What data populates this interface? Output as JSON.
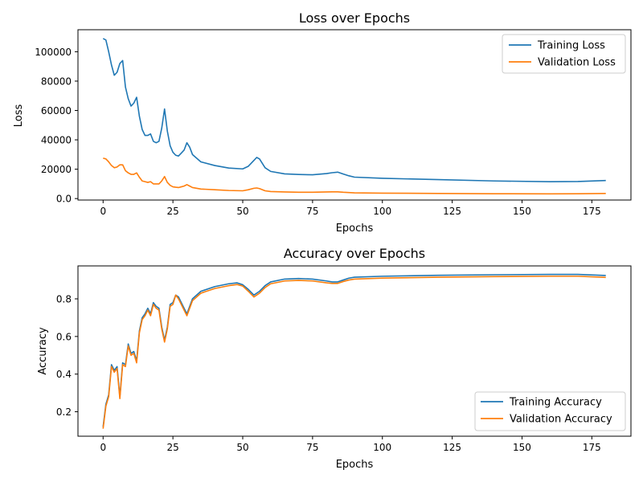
{
  "chart_data": [
    {
      "type": "line",
      "title": "Loss over Epochs",
      "xlabel": "Epochs",
      "ylabel": "Loss",
      "xlim": [
        -9,
        189
      ],
      "ylim": [
        -1000,
        115000
      ],
      "xticks": [
        0,
        25,
        50,
        75,
        100,
        125,
        150,
        175
      ],
      "yticks": [
        0,
        20000,
        40000,
        60000,
        80000,
        100000
      ],
      "grid": false,
      "legend": "top-right",
      "colors": [
        "#1f77b4",
        "#ff7f0e"
      ],
      "x": [
        0,
        1,
        2,
        3,
        4,
        5,
        6,
        7,
        8,
        9,
        10,
        11,
        12,
        13,
        14,
        15,
        16,
        17,
        18,
        19,
        20,
        21,
        22,
        23,
        24,
        25,
        26,
        27,
        28,
        29,
        30,
        31,
        32,
        35,
        40,
        45,
        50,
        52,
        54,
        55,
        56,
        58,
        60,
        65,
        70,
        75,
        80,
        82,
        84,
        86,
        88,
        90,
        100,
        120,
        140,
        160,
        170,
        180
      ],
      "series": [
        {
          "name": "Training Loss",
          "values": [
            109000,
            108000,
            100000,
            91000,
            84000,
            86000,
            92000,
            94000,
            76000,
            68000,
            63000,
            65000,
            69000,
            56000,
            47000,
            43000,
            43000,
            44000,
            39000,
            38000,
            39000,
            48000,
            61000,
            46000,
            36000,
            31500,
            29500,
            29000,
            31000,
            33000,
            38000,
            35000,
            30000,
            25000,
            22500,
            20800,
            20200,
            22000,
            26000,
            28000,
            27000,
            21000,
            18500,
            16800,
            16400,
            16200,
            17000,
            17600,
            18000,
            16700,
            15500,
            14600,
            13800,
            12900,
            12000,
            11500,
            11600,
            12300
          ]
        },
        {
          "name": "Validation Loss",
          "values": [
            27500,
            27000,
            25000,
            22500,
            21000,
            21500,
            23000,
            23000,
            19000,
            17500,
            16500,
            16500,
            17500,
            14500,
            12000,
            11500,
            11000,
            11500,
            10000,
            10000,
            10000,
            12000,
            15000,
            11000,
            9000,
            8000,
            7700,
            7500,
            8000,
            8500,
            9500,
            8500,
            7500,
            6500,
            6000,
            5500,
            5300,
            6000,
            7000,
            7200,
            6800,
            5300,
            4800,
            4500,
            4300,
            4300,
            4500,
            4600,
            4600,
            4300,
            4100,
            3900,
            3700,
            3500,
            3300,
            3200,
            3300,
            3500
          ]
        }
      ]
    },
    {
      "type": "line",
      "title": "Accuracy over Epochs",
      "xlabel": "Epochs",
      "ylabel": "Accuracy",
      "xlim": [
        -9,
        189
      ],
      "ylim": [
        0.07,
        0.975
      ],
      "xticks": [
        0,
        25,
        50,
        75,
        100,
        125,
        150,
        175
      ],
      "yticks": [
        0.2,
        0.4,
        0.6,
        0.8
      ],
      "grid": false,
      "legend": "bottom-right",
      "colors": [
        "#1f77b4",
        "#ff7f0e"
      ],
      "x": [
        0,
        1,
        2,
        3,
        4,
        5,
        6,
        7,
        8,
        9,
        10,
        11,
        12,
        13,
        14,
        15,
        16,
        17,
        18,
        19,
        20,
        21,
        22,
        23,
        24,
        25,
        26,
        27,
        28,
        29,
        30,
        31,
        32,
        35,
        40,
        45,
        48,
        50,
        52,
        54,
        56,
        58,
        60,
        65,
        70,
        75,
        80,
        82,
        84,
        86,
        88,
        90,
        100,
        120,
        140,
        160,
        170,
        180
      ],
      "series": [
        {
          "name": "Training Accuracy",
          "values": [
            0.12,
            0.24,
            0.29,
            0.45,
            0.42,
            0.44,
            0.28,
            0.46,
            0.45,
            0.56,
            0.51,
            0.52,
            0.47,
            0.63,
            0.7,
            0.72,
            0.75,
            0.72,
            0.78,
            0.76,
            0.75,
            0.65,
            0.58,
            0.65,
            0.77,
            0.78,
            0.82,
            0.81,
            0.78,
            0.75,
            0.72,
            0.76,
            0.8,
            0.84,
            0.865,
            0.88,
            0.885,
            0.875,
            0.85,
            0.82,
            0.84,
            0.87,
            0.89,
            0.905,
            0.908,
            0.905,
            0.895,
            0.89,
            0.89,
            0.9,
            0.91,
            0.915,
            0.92,
            0.925,
            0.928,
            0.93,
            0.93,
            0.924
          ]
        },
        {
          "name": "Validation Accuracy",
          "values": [
            0.11,
            0.23,
            0.28,
            0.44,
            0.41,
            0.43,
            0.27,
            0.45,
            0.44,
            0.55,
            0.5,
            0.51,
            0.46,
            0.62,
            0.69,
            0.71,
            0.74,
            0.71,
            0.77,
            0.75,
            0.74,
            0.64,
            0.57,
            0.64,
            0.76,
            0.77,
            0.82,
            0.8,
            0.77,
            0.74,
            0.71,
            0.75,
            0.79,
            0.83,
            0.855,
            0.87,
            0.876,
            0.868,
            0.84,
            0.81,
            0.83,
            0.86,
            0.88,
            0.895,
            0.898,
            0.895,
            0.885,
            0.882,
            0.882,
            0.892,
            0.9,
            0.905,
            0.91,
            0.915,
            0.918,
            0.92,
            0.92,
            0.914
          ]
        }
      ]
    }
  ]
}
